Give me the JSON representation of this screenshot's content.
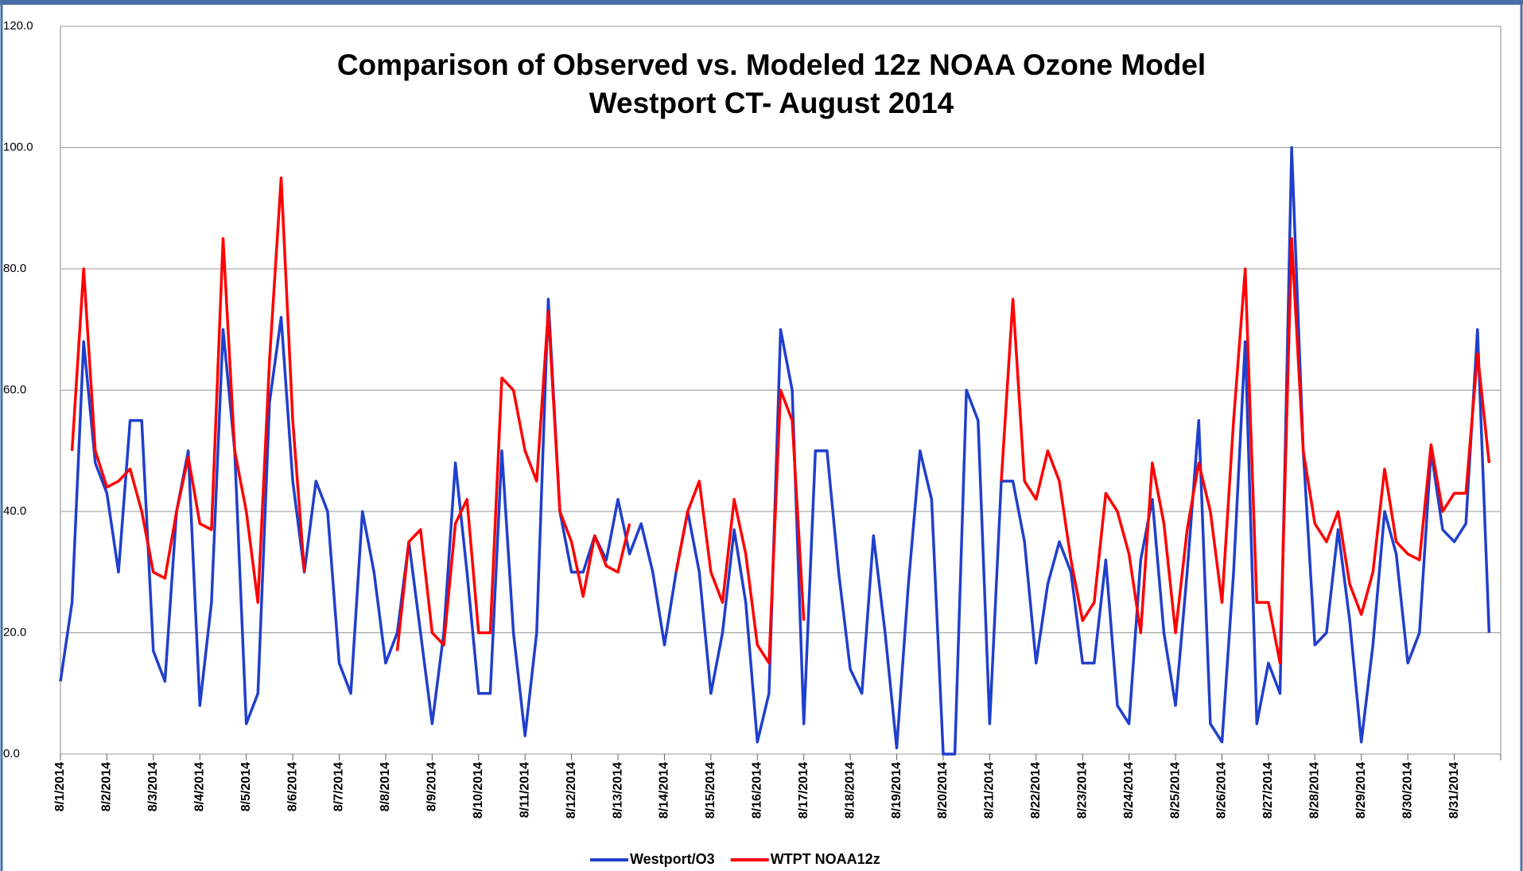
{
  "chart_data": {
    "type": "line",
    "title": "Comparison of Observed vs. Modeled 12z NOAA Ozone Model",
    "subtitle": "Westport CT- August 2014",
    "x": [
      0,
      6,
      12,
      18,
      24,
      30,
      36,
      42,
      48,
      54,
      60,
      66,
      72,
      78,
      84,
      90,
      96,
      102,
      108,
      114,
      120,
      126,
      132,
      138,
      144,
      150,
      156,
      162,
      168,
      174,
      180,
      186,
      192,
      198,
      204,
      210,
      216,
      222,
      228,
      234,
      240,
      246,
      252,
      258,
      264,
      270,
      276,
      282,
      288,
      294,
      300,
      306,
      312,
      318,
      324,
      330,
      336,
      342,
      348,
      354,
      360,
      366,
      372,
      378,
      384,
      390,
      396,
      402,
      408,
      414,
      420,
      426,
      432,
      438,
      444,
      450,
      456,
      462,
      468,
      474,
      480,
      486,
      492,
      498,
      504,
      510,
      516,
      522,
      528,
      534,
      540,
      546,
      552,
      558,
      564,
      570,
      576,
      582,
      588,
      594,
      600,
      606,
      612,
      618,
      624,
      630,
      636,
      642,
      648,
      654,
      660,
      666,
      672,
      678,
      684,
      690,
      696,
      702,
      708,
      714,
      720,
      726,
      732,
      738
    ],
    "xlim": [
      0,
      744
    ],
    "xticks": [
      {
        "value": 0,
        "label": "8/1/2014"
      },
      {
        "value": 24,
        "label": "8/2/2014"
      },
      {
        "value": 48,
        "label": "8/3/2014"
      },
      {
        "value": 72,
        "label": "8/4/2014"
      },
      {
        "value": 96,
        "label": "8/5/2014"
      },
      {
        "value": 120,
        "label": "8/6/2014"
      },
      {
        "value": 144,
        "label": "8/7/2014"
      },
      {
        "value": 168,
        "label": "8/8/2014"
      },
      {
        "value": 192,
        "label": "8/9/2014"
      },
      {
        "value": 216,
        "label": "8/10/2014"
      },
      {
        "value": 240,
        "label": "8/11/2014"
      },
      {
        "value": 264,
        "label": "8/12/2014"
      },
      {
        "value": 288,
        "label": "8/13/2014"
      },
      {
        "value": 312,
        "label": "8/14/2014"
      },
      {
        "value": 336,
        "label": "8/15/2014"
      },
      {
        "value": 360,
        "label": "8/16/2014"
      },
      {
        "value": 384,
        "label": "8/17/2014"
      },
      {
        "value": 408,
        "label": "8/18/2014"
      },
      {
        "value": 432,
        "label": "8/19/2014"
      },
      {
        "value": 456,
        "label": "8/20/2014"
      },
      {
        "value": 480,
        "label": "8/21/2014"
      },
      {
        "value": 504,
        "label": "8/22/2014"
      },
      {
        "value": 528,
        "label": "8/23/2014"
      },
      {
        "value": 552,
        "label": "8/24/2014"
      },
      {
        "value": 576,
        "label": "8/25/2014"
      },
      {
        "value": 600,
        "label": "8/26/2014"
      },
      {
        "value": 624,
        "label": "8/27/2014"
      },
      {
        "value": 648,
        "label": "8/28/2014"
      },
      {
        "value": 672,
        "label": "8/29/2014"
      },
      {
        "value": 696,
        "label": "8/30/2014"
      },
      {
        "value": 720,
        "label": "8/31/2014"
      }
    ],
    "ylim": [
      0,
      120
    ],
    "yticks": [
      {
        "value": 0,
        "label": "0.0"
      },
      {
        "value": 20,
        "label": "20.0"
      },
      {
        "value": 40,
        "label": "40.0"
      },
      {
        "value": 60,
        "label": "60.0"
      },
      {
        "value": 80,
        "label": "80.0"
      },
      {
        "value": 100,
        "label": "100.0"
      },
      {
        "value": 120,
        "label": "120.0"
      }
    ],
    "grid": true,
    "legend": "bottom",
    "series": [
      {
        "name": "Westport/O3",
        "color": "#1f3fcc",
        "values": [
          12,
          25,
          68,
          48,
          43,
          30,
          55,
          55,
          17,
          12,
          40,
          50,
          8,
          25,
          70,
          50,
          5,
          10,
          58,
          72,
          45,
          30,
          45,
          40,
          15,
          10,
          40,
          30,
          15,
          20,
          35,
          20,
          5,
          20,
          48,
          30,
          10,
          10,
          50,
          20,
          3,
          20,
          75,
          40,
          30,
          30,
          36,
          32,
          42,
          33,
          38,
          30,
          18,
          30,
          40,
          30,
          10,
          20,
          37,
          25,
          2,
          10,
          70,
          60,
          5,
          50,
          50,
          30,
          14,
          10,
          36,
          20,
          1,
          28,
          50,
          42,
          0,
          0,
          60,
          55,
          5,
          45,
          45,
          35,
          15,
          28,
          35,
          30,
          15,
          15,
          32,
          8,
          5,
          32,
          42,
          20,
          8,
          30,
          55,
          5,
          2,
          30,
          68,
          5,
          15,
          10,
          100,
          50,
          18,
          20,
          37,
          22,
          2,
          18,
          40,
          33,
          15,
          20,
          50,
          37,
          35,
          38,
          70,
          20
        ]
      },
      {
        "name": "WTPT NOAA12z",
        "color": "#ff0000",
        "values": [
          null,
          50,
          80,
          50,
          44,
          45,
          47,
          40,
          30,
          29,
          40,
          49,
          38,
          37,
          85,
          50,
          40,
          25,
          65,
          95,
          55,
          30,
          null,
          null,
          null,
          null,
          null,
          null,
          null,
          17,
          35,
          37,
          20,
          18,
          38,
          42,
          20,
          20,
          62,
          60,
          50,
          45,
          73,
          40,
          35,
          26,
          36,
          31,
          30,
          38,
          null,
          null,
          null,
          30,
          40,
          45,
          30,
          25,
          42,
          33,
          18,
          15,
          60,
          55,
          22,
          null,
          null,
          null,
          null,
          null,
          null,
          null,
          null,
          null,
          null,
          null,
          null,
          null,
          null,
          null,
          null,
          45,
          75,
          45,
          42,
          50,
          45,
          32,
          22,
          25,
          43,
          40,
          33,
          20,
          48,
          38,
          20,
          37,
          48,
          40,
          25,
          55,
          80,
          25,
          25,
          15,
          85,
          50,
          38,
          35,
          40,
          28,
          23,
          30,
          47,
          35,
          33,
          32,
          51,
          40,
          43,
          43,
          66,
          48
        ]
      }
    ]
  }
}
